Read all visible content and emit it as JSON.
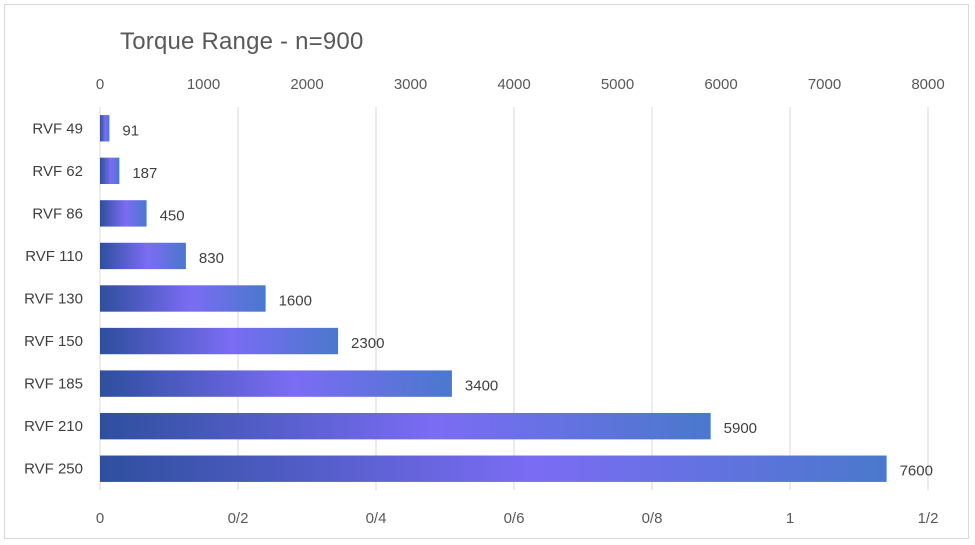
{
  "chart_data": {
    "type": "bar",
    "orientation": "horizontal",
    "title": "Torque Range - n=900",
    "categories": [
      "RVF 49",
      "RVF 62",
      "RVF 86",
      "RVF 110",
      "RVF 130",
      "RVF 150",
      "RVF 185",
      "RVF 210",
      "RVF 250"
    ],
    "values": [
      91,
      187,
      450,
      830,
      1600,
      2300,
      3400,
      5900,
      7600
    ],
    "data_labels": [
      "91",
      "187",
      "450",
      "830",
      "1600",
      "2300",
      "3400",
      "5900",
      "7600"
    ],
    "x_top_axis": {
      "min": 0,
      "max": 8000,
      "ticks": [
        "0",
        "1000",
        "2000",
        "3000",
        "4000",
        "5000",
        "6000",
        "7000",
        "8000"
      ]
    },
    "x_bottom_axis": {
      "min": 0,
      "max": 1.2,
      "ticks": [
        "0",
        "0/2",
        "0/4",
        "0/6",
        "0/8",
        "1",
        "1/2"
      ]
    },
    "grid": true,
    "legend": "none",
    "colors": {
      "bar_dark": "#2e4f9e",
      "bar_light": "#7b6cf4",
      "bar_end": "#4a78cc",
      "gridline": "#d9d9d9",
      "axis_text": "#595959"
    }
  }
}
